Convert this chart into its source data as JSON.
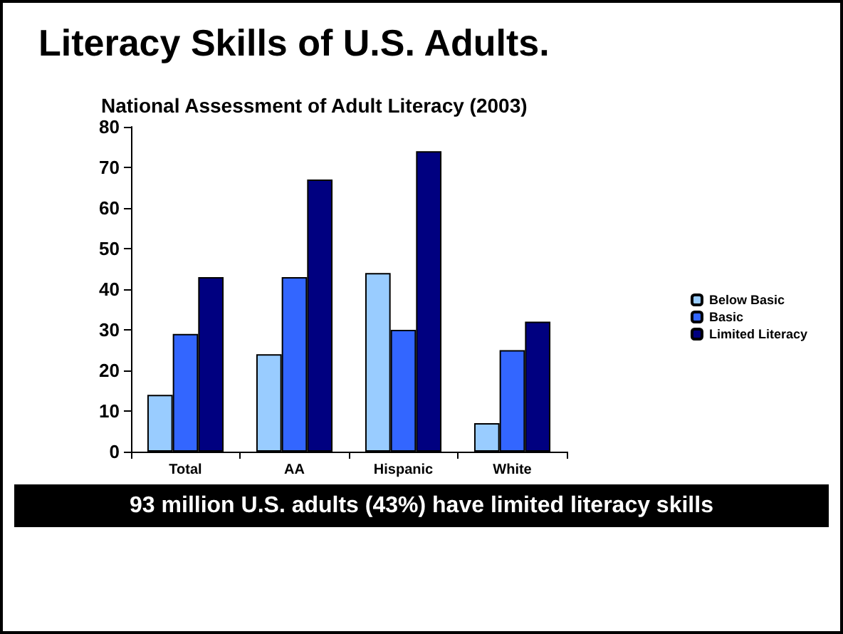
{
  "chart_data": {
    "type": "bar",
    "title": "Literacy Skills of U.S. Adults.",
    "subtitle": "National Assessment of Adult Literacy (2003)",
    "categories": [
      "Total",
      "AA",
      "Hispanic",
      "White"
    ],
    "series": [
      {
        "name": "Below Basic",
        "color": "#99ccff",
        "values": [
          14,
          24,
          44,
          7
        ]
      },
      {
        "name": "Basic",
        "color": "#3366ff",
        "values": [
          29,
          43,
          30,
          25
        ]
      },
      {
        "name": "Limited Literacy",
        "color": "#000080",
        "values": [
          43,
          67,
          74,
          32
        ]
      }
    ],
    "ylim": [
      0,
      80
    ],
    "yticks": [
      0,
      10,
      20,
      30,
      40,
      50,
      60,
      70,
      80
    ],
    "grid": false,
    "legend": "right",
    "annotations": [
      "93 million U.S. adults (43%) have limited literacy skills"
    ]
  }
}
